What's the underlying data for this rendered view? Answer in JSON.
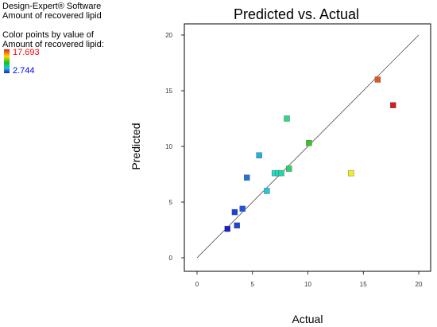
{
  "legend": {
    "software": "Design-Expert® Software",
    "response": "Amount of recovered lipid",
    "color_label_1": "Color points by value of",
    "color_label_2": "Amount of recovered lipid:",
    "max_value": "17.693",
    "min_value": "2.744"
  },
  "colors": {
    "high": "#e61e1e",
    "low": "#1b20c8"
  },
  "chart_data": {
    "type": "scatter",
    "title": "Predicted vs. Actual",
    "xlabel": "Actual",
    "ylabel": "Predicted",
    "xlim": [
      0,
      20
    ],
    "ylim": [
      0,
      20
    ],
    "xticks": [
      "0",
      "5",
      "10",
      "15",
      "20"
    ],
    "yticks": [
      "0",
      "5",
      "10",
      "15",
      "20"
    ],
    "reference_line": {
      "from": [
        0,
        0
      ],
      "to": [
        20,
        20
      ]
    },
    "points": [
      {
        "x": 2.744,
        "y": 2.6,
        "color": "#1a1fc8"
      },
      {
        "x": 3.4,
        "y": 4.1,
        "color": "#1e3fd6"
      },
      {
        "x": 3.6,
        "y": 2.9,
        "color": "#1e44d6"
      },
      {
        "x": 4.1,
        "y": 4.4,
        "color": "#1f55dc"
      },
      {
        "x": 4.5,
        "y": 7.2,
        "color": "#1e73e0"
      },
      {
        "x": 5.6,
        "y": 9.2,
        "color": "#1fb0e4"
      },
      {
        "x": 6.3,
        "y": 6.0,
        "color": "#1ecae0"
      },
      {
        "x": 7.0,
        "y": 7.6,
        "color": "#1fdccb"
      },
      {
        "x": 7.3,
        "y": 7.6,
        "color": "#1fdcb5"
      },
      {
        "x": 7.6,
        "y": 7.6,
        "color": "#22d8a8"
      },
      {
        "x": 8.1,
        "y": 12.5,
        "color": "#2bd884"
      },
      {
        "x": 8.3,
        "y": 8.0,
        "color": "#27d46c"
      },
      {
        "x": 10.1,
        "y": 10.3,
        "color": "#36c424"
      },
      {
        "x": 13.9,
        "y": 7.6,
        "color": "#f0f020"
      },
      {
        "x": 16.3,
        "y": 16.0,
        "color": "#e4541e"
      },
      {
        "x": 17.693,
        "y": 13.7,
        "color": "#e01818"
      }
    ]
  }
}
